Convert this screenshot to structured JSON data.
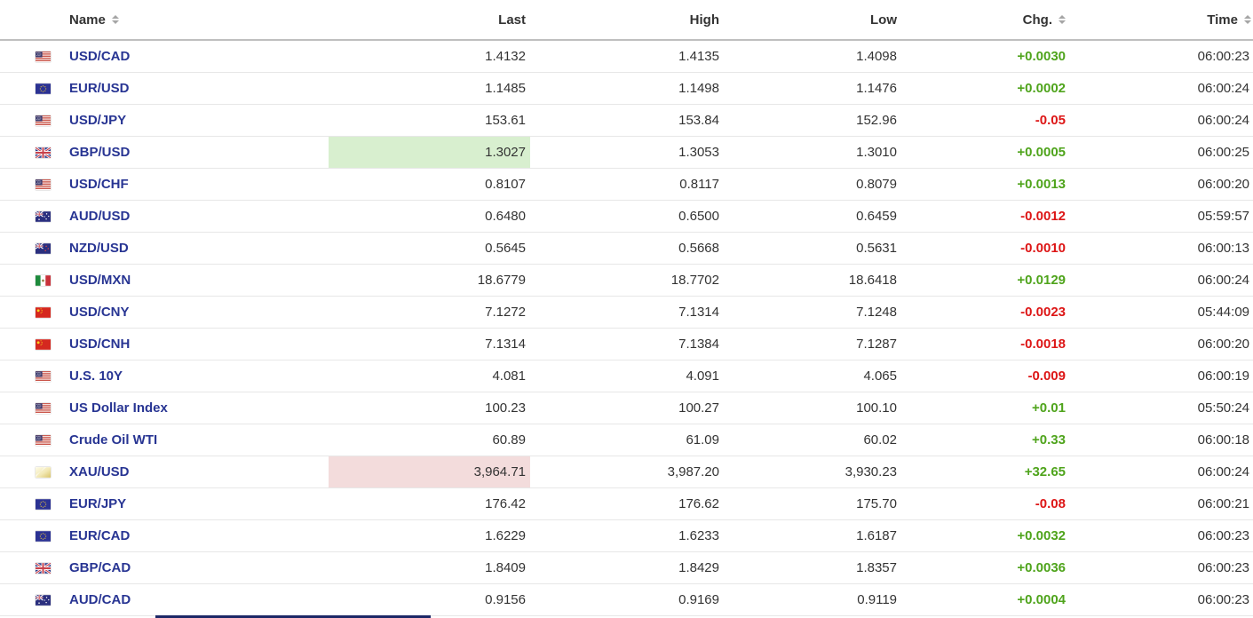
{
  "table": {
    "headers": {
      "name": {
        "label": "Name",
        "sortable": true
      },
      "last": {
        "label": "Last",
        "sortable": false
      },
      "high": {
        "label": "High",
        "sortable": false
      },
      "low": {
        "label": "Low",
        "sortable": false
      },
      "chg": {
        "label": "Chg.",
        "sortable": true
      },
      "time": {
        "label": "Time",
        "sortable": true
      }
    },
    "rows": [
      {
        "flag": "us",
        "name": "USD/CAD",
        "last": "1.4132",
        "high": "1.4135",
        "low": "1.4098",
        "chg": "+0.0030",
        "chg_dir": "up",
        "time": "06:00:23",
        "flash": ""
      },
      {
        "flag": "eu",
        "name": "EUR/USD",
        "last": "1.1485",
        "high": "1.1498",
        "low": "1.1476",
        "chg": "+0.0002",
        "chg_dir": "up",
        "time": "06:00:24",
        "flash": ""
      },
      {
        "flag": "us",
        "name": "USD/JPY",
        "last": "153.61",
        "high": "153.84",
        "low": "152.96",
        "chg": "-0.05",
        "chg_dir": "down",
        "time": "06:00:24",
        "flash": ""
      },
      {
        "flag": "gb",
        "name": "GBP/USD",
        "last": "1.3027",
        "high": "1.3053",
        "low": "1.3010",
        "chg": "+0.0005",
        "chg_dir": "up",
        "time": "06:00:25",
        "flash": "up"
      },
      {
        "flag": "us",
        "name": "USD/CHF",
        "last": "0.8107",
        "high": "0.8117",
        "low": "0.8079",
        "chg": "+0.0013",
        "chg_dir": "up",
        "time": "06:00:20",
        "flash": ""
      },
      {
        "flag": "au",
        "name": "AUD/USD",
        "last": "0.6480",
        "high": "0.6500",
        "low": "0.6459",
        "chg": "-0.0012",
        "chg_dir": "down",
        "time": "05:59:57",
        "flash": ""
      },
      {
        "flag": "nz",
        "name": "NZD/USD",
        "last": "0.5645",
        "high": "0.5668",
        "low": "0.5631",
        "chg": "-0.0010",
        "chg_dir": "down",
        "time": "06:00:13",
        "flash": ""
      },
      {
        "flag": "mx",
        "name": "USD/MXN",
        "last": "18.6779",
        "high": "18.7702",
        "low": "18.6418",
        "chg": "+0.0129",
        "chg_dir": "up",
        "time": "06:00:24",
        "flash": ""
      },
      {
        "flag": "cn",
        "name": "USD/CNY",
        "last": "7.1272",
        "high": "7.1314",
        "low": "7.1248",
        "chg": "-0.0023",
        "chg_dir": "down",
        "time": "05:44:09",
        "flash": ""
      },
      {
        "flag": "cn",
        "name": "USD/CNH",
        "last": "7.1314",
        "high": "7.1384",
        "low": "7.1287",
        "chg": "-0.0018",
        "chg_dir": "down",
        "time": "06:00:20",
        "flash": ""
      },
      {
        "flag": "us",
        "name": "U.S. 10Y",
        "last": "4.081",
        "high": "4.091",
        "low": "4.065",
        "chg": "-0.009",
        "chg_dir": "down",
        "time": "06:00:19",
        "flash": ""
      },
      {
        "flag": "us",
        "name": "US Dollar Index",
        "last": "100.23",
        "high": "100.27",
        "low": "100.10",
        "chg": "+0.01",
        "chg_dir": "up",
        "time": "05:50:24",
        "flash": ""
      },
      {
        "flag": "us",
        "name": "Crude Oil WTI",
        "last": "60.89",
        "high": "61.09",
        "low": "60.02",
        "chg": "+0.33",
        "chg_dir": "up",
        "time": "06:00:18",
        "flash": ""
      },
      {
        "flag": "gold",
        "name": "XAU/USD",
        "last": "3,964.71",
        "high": "3,987.20",
        "low": "3,930.23",
        "chg": "+32.65",
        "chg_dir": "up",
        "time": "06:00:24",
        "flash": "down"
      },
      {
        "flag": "eu",
        "name": "EUR/JPY",
        "last": "176.42",
        "high": "176.62",
        "low": "175.70",
        "chg": "-0.08",
        "chg_dir": "down",
        "time": "06:00:21",
        "flash": ""
      },
      {
        "flag": "eu",
        "name": "EUR/CAD",
        "last": "1.6229",
        "high": "1.6233",
        "low": "1.6187",
        "chg": "+0.0032",
        "chg_dir": "up",
        "time": "06:00:23",
        "flash": ""
      },
      {
        "flag": "gb",
        "name": "GBP/CAD",
        "last": "1.8409",
        "high": "1.8429",
        "low": "1.8357",
        "chg": "+0.0036",
        "chg_dir": "up",
        "time": "06:00:23",
        "flash": ""
      },
      {
        "flag": "au",
        "name": "AUD/CAD",
        "last": "0.9156",
        "high": "0.9169",
        "low": "0.9119",
        "chg": "+0.0004",
        "chg_dir": "up",
        "time": "06:00:23",
        "flash": ""
      }
    ]
  },
  "colors": {
    "positive": "#4fa41c",
    "negative": "#dd1616",
    "flash_up_bg": "#d8efcf",
    "flash_down_bg": "#f3dcdc",
    "link": "#283593"
  }
}
